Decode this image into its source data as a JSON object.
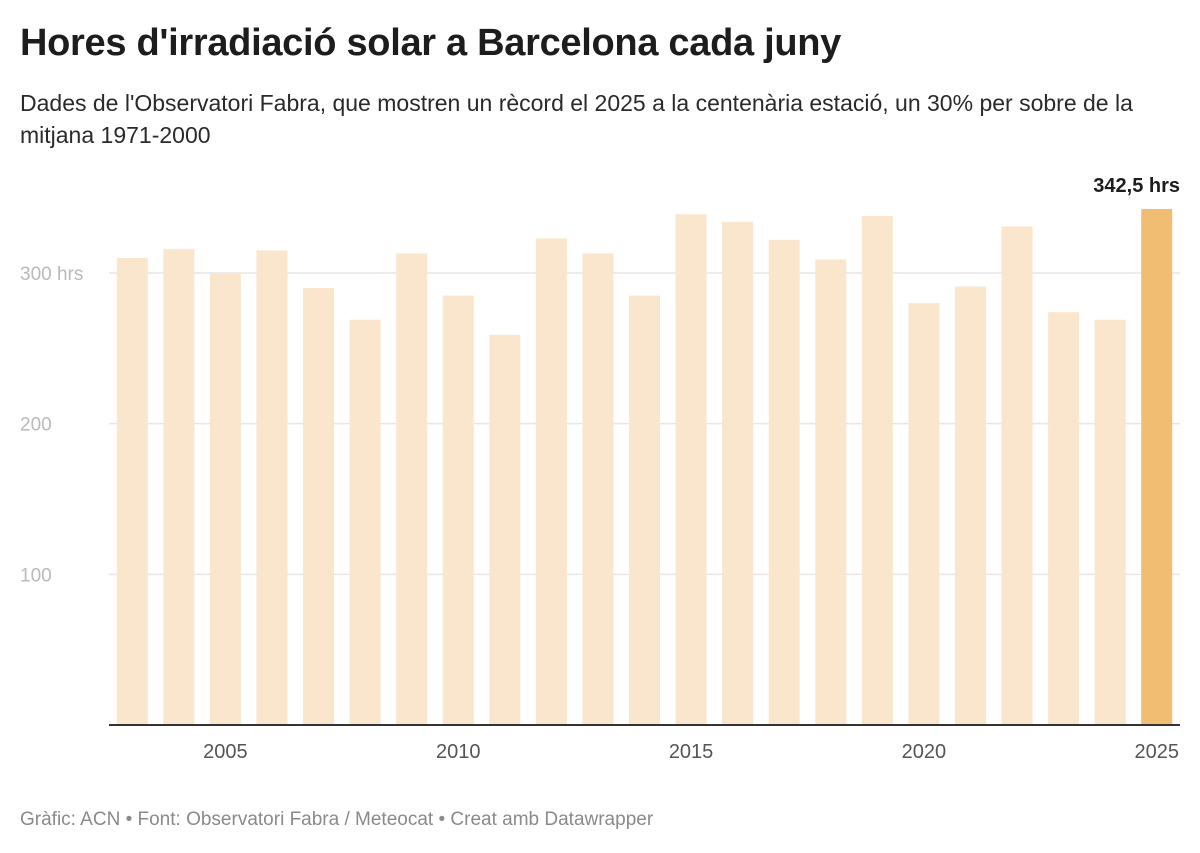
{
  "header": {
    "title": "Hores d'irradiació solar a Barcelona cada juny",
    "subtitle": "Dades de l'Observatori Fabra, que mostren un rècord el 2025 a la centenària estació, un 30% per sobre de la mitjana 1971-2000"
  },
  "footer": {
    "text": "Gràfic: ACN • Font: Observatori Fabra / Meteocat • Creat amb Datawrapper"
  },
  "colors": {
    "bar": "#fae6cc",
    "highlight_bar": "#f0bd73",
    "grid": "#e6e6e6",
    "axis": "#333333"
  },
  "chart_data": {
    "type": "bar",
    "title": "Hores d'irradiació solar a Barcelona cada juny",
    "xlabel": "",
    "ylabel": "",
    "categories": [
      "2003",
      "2004",
      "2005",
      "2006",
      "2007",
      "2008",
      "2009",
      "2010",
      "2011",
      "2012",
      "2013",
      "2014",
      "2015",
      "2016",
      "2017",
      "2018",
      "2019",
      "2020",
      "2021",
      "2022",
      "2023",
      "2024",
      "2025"
    ],
    "values": [
      310,
      316,
      300,
      315,
      290,
      269,
      313,
      285,
      259,
      323,
      313,
      285,
      339,
      334,
      322,
      309,
      338,
      280,
      291,
      331,
      274,
      269,
      342.5
    ],
    "ylim": [
      0,
      342.5
    ],
    "y_ticks": [
      {
        "value": 100,
        "label": "100"
      },
      {
        "value": 200,
        "label": "200"
      },
      {
        "value": 300,
        "label": "300 hrs"
      }
    ],
    "x_ticks": [
      {
        "value": "2005",
        "label": "2005"
      },
      {
        "value": "2010",
        "label": "2010"
      },
      {
        "value": "2015",
        "label": "2015"
      },
      {
        "value": "2020",
        "label": "2020"
      },
      {
        "value": "2025",
        "label": "2025"
      }
    ],
    "grid": true,
    "highlight": {
      "category": "2025",
      "label": "342,5 hrs"
    }
  }
}
